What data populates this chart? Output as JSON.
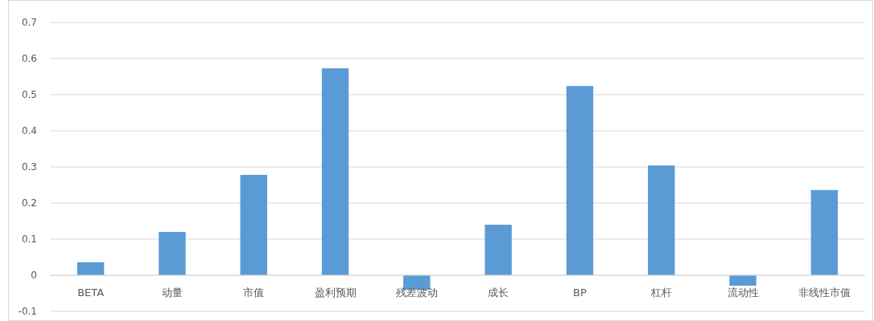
{
  "chart_data": {
    "type": "bar",
    "categories": [
      "BETA",
      "动量",
      "市值",
      "盈利预期",
      "残差波动",
      "成长",
      "BP",
      "杠杆",
      "流动性",
      "非线性市值"
    ],
    "values": [
      0.036,
      0.12,
      0.278,
      0.573,
      -0.04,
      0.14,
      0.524,
      0.304,
      -0.029,
      0.236
    ],
    "color": "#5b9bd5",
    "ylim": [
      -0.1,
      0.7
    ],
    "yticks": [
      -0.1,
      0,
      0.1,
      0.2,
      0.3,
      0.4,
      0.5,
      0.6,
      0.7
    ],
    "grid": "y"
  }
}
